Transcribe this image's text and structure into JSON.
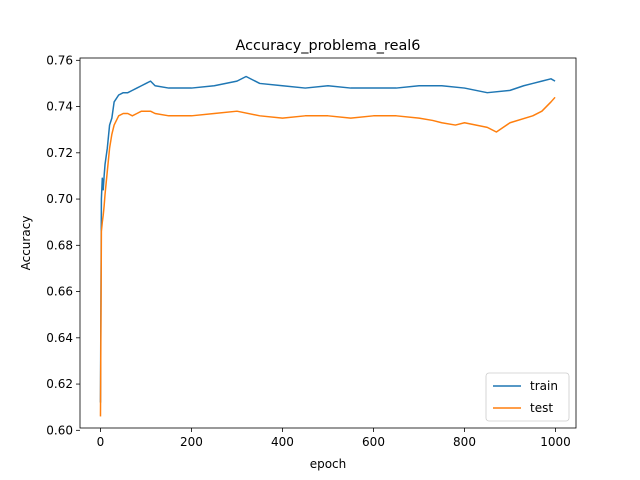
{
  "chart_data": {
    "type": "line",
    "title": "Accuracy_problema_real6",
    "xlabel": "epoch",
    "ylabel": "Accuracy",
    "xlim": [
      -45,
      1045
    ],
    "ylim": [
      0.601,
      0.761
    ],
    "xticks": [
      0,
      200,
      400,
      600,
      800,
      1000
    ],
    "yticks": [
      0.6,
      0.62,
      0.64,
      0.66,
      0.68,
      0.7,
      0.72,
      0.74,
      0.76
    ],
    "ytick_labels": [
      "0.60",
      "0.62",
      "0.64",
      "0.66",
      "0.68",
      "0.70",
      "0.72",
      "0.74",
      "0.76"
    ],
    "grid": false,
    "legend_position": "lower right",
    "series": [
      {
        "name": "train",
        "color": "#1f77b4",
        "x": [
          0,
          2,
          4,
          6,
          8,
          10,
          15,
          20,
          25,
          30,
          40,
          50,
          60,
          70,
          80,
          90,
          100,
          110,
          120,
          150,
          200,
          250,
          300,
          320,
          350,
          400,
          450,
          500,
          550,
          600,
          650,
          700,
          750,
          800,
          850,
          900,
          930,
          950,
          970,
          990,
          999
        ],
        "y": [
          0.612,
          0.7,
          0.709,
          0.704,
          0.71,
          0.715,
          0.722,
          0.732,
          0.735,
          0.742,
          0.745,
          0.746,
          0.746,
          0.747,
          0.748,
          0.749,
          0.75,
          0.751,
          0.749,
          0.748,
          0.748,
          0.749,
          0.751,
          0.753,
          0.75,
          0.749,
          0.748,
          0.749,
          0.748,
          0.748,
          0.748,
          0.749,
          0.749,
          0.748,
          0.746,
          0.747,
          0.749,
          0.75,
          0.751,
          0.752,
          0.751
        ]
      },
      {
        "name": "test",
        "color": "#ff7f0e",
        "x": [
          0,
          2,
          4,
          6,
          8,
          10,
          15,
          20,
          25,
          30,
          40,
          50,
          60,
          70,
          80,
          90,
          100,
          110,
          120,
          150,
          200,
          250,
          300,
          350,
          400,
          450,
          500,
          550,
          600,
          650,
          700,
          730,
          750,
          780,
          800,
          850,
          870,
          900,
          950,
          970,
          990,
          999
        ],
        "y": [
          0.606,
          0.686,
          0.69,
          0.693,
          0.697,
          0.702,
          0.712,
          0.722,
          0.728,
          0.732,
          0.736,
          0.737,
          0.737,
          0.736,
          0.737,
          0.738,
          0.738,
          0.738,
          0.737,
          0.736,
          0.736,
          0.737,
          0.738,
          0.736,
          0.735,
          0.736,
          0.736,
          0.735,
          0.736,
          0.736,
          0.735,
          0.734,
          0.733,
          0.732,
          0.733,
          0.731,
          0.729,
          0.733,
          0.736,
          0.738,
          0.742,
          0.744
        ]
      }
    ]
  }
}
